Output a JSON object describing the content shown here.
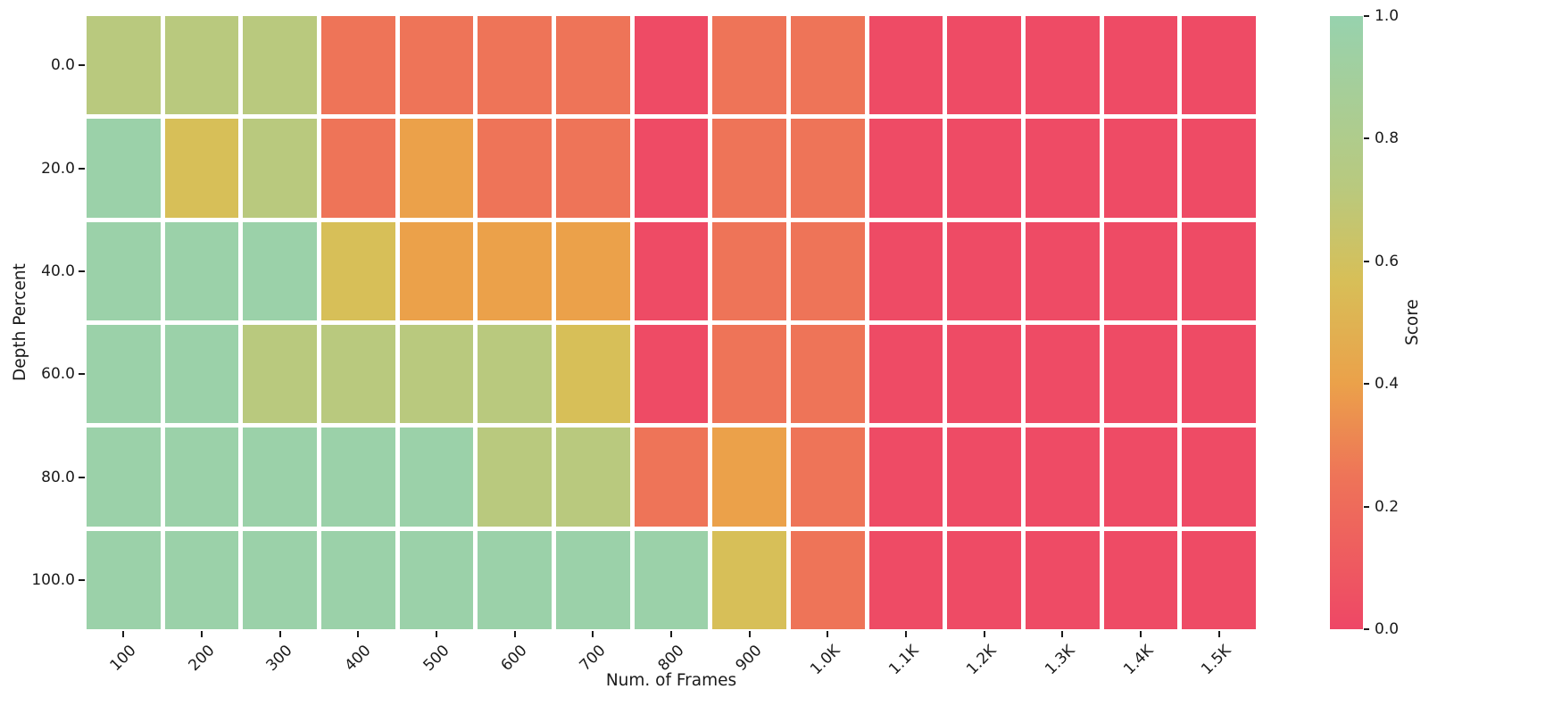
{
  "chart_data": {
    "type": "heatmap",
    "xlabel": "Num. of Frames",
    "ylabel": "Depth Percent",
    "x_ticks": [
      "100",
      "200",
      "300",
      "400",
      "500",
      "600",
      "700",
      "800",
      "900",
      "1.0K",
      "1.1K",
      "1.2K",
      "1.3K",
      "1.4K",
      "1.5K"
    ],
    "y_ticks": [
      "0.0",
      "20.0",
      "40.0",
      "60.0",
      "80.0",
      "100.0"
    ],
    "values": [
      [
        0.72,
        0.72,
        0.72,
        0.25,
        0.25,
        0.25,
        0.25,
        0.02,
        0.25,
        0.25,
        0.02,
        0.02,
        0.02,
        0.02,
        0.02
      ],
      [
        0.97,
        0.57,
        0.72,
        0.25,
        0.4,
        0.25,
        0.25,
        0.02,
        0.25,
        0.25,
        0.02,
        0.02,
        0.02,
        0.02,
        0.02
      ],
      [
        0.97,
        0.97,
        0.97,
        0.57,
        0.4,
        0.4,
        0.4,
        0.02,
        0.25,
        0.25,
        0.02,
        0.02,
        0.02,
        0.02,
        0.02
      ],
      [
        0.97,
        0.97,
        0.72,
        0.72,
        0.72,
        0.72,
        0.57,
        0.02,
        0.25,
        0.25,
        0.02,
        0.02,
        0.02,
        0.02,
        0.02
      ],
      [
        0.97,
        0.97,
        0.97,
        0.97,
        0.97,
        0.72,
        0.72,
        0.25,
        0.4,
        0.25,
        0.02,
        0.02,
        0.02,
        0.02,
        0.02
      ],
      [
        0.97,
        0.97,
        0.97,
        0.97,
        0.97,
        0.97,
        0.97,
        0.97,
        0.57,
        0.25,
        0.02,
        0.02,
        0.02,
        0.02,
        0.02
      ]
    ],
    "value_range": [
      0.0,
      1.0
    ],
    "grid_gap_color": "#ffffff",
    "colormap_stops": [
      {
        "value": 0.0,
        "color": "#ee4766"
      },
      {
        "value": 0.25,
        "color": "#ee7458"
      },
      {
        "value": 0.4,
        "color": "#eba14a"
      },
      {
        "value": 0.57,
        "color": "#d7bf58"
      },
      {
        "value": 0.72,
        "color": "#b9c97e"
      },
      {
        "value": 1.0,
        "color": "#97d2ae"
      }
    ],
    "colorbar": {
      "label": "Score",
      "position": "right",
      "tick_labels": [
        "1.0",
        "0.8",
        "0.6",
        "0.4",
        "0.2",
        "0.0"
      ],
      "tick_values": [
        1.0,
        0.8,
        0.6,
        0.4,
        0.2,
        0.0
      ],
      "min": 0.0,
      "max": 1.0
    }
  }
}
